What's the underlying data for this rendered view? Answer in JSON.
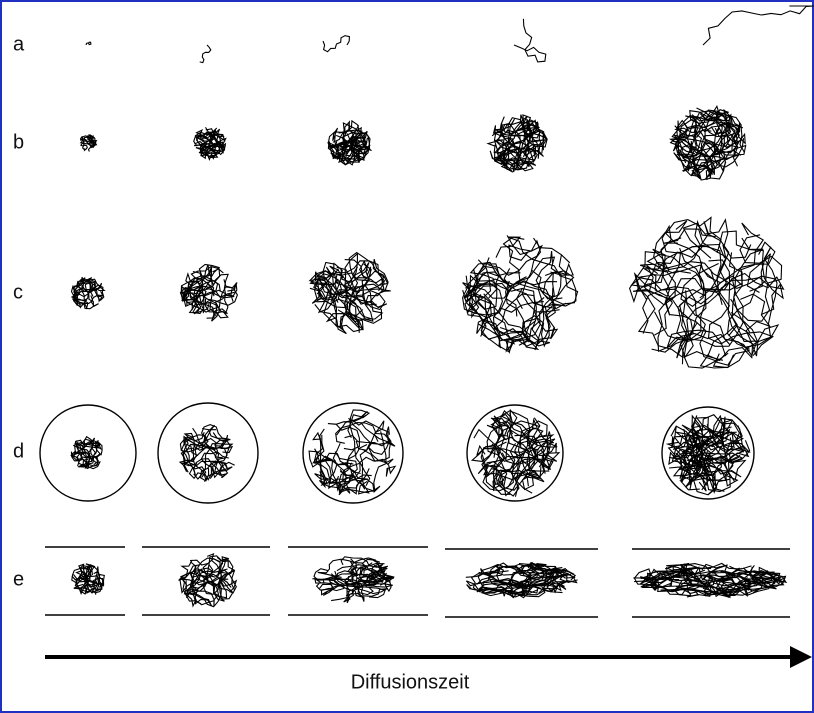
{
  "rows": [
    {
      "label": "a"
    },
    {
      "label": "b"
    },
    {
      "label": "c"
    },
    {
      "label": "d"
    },
    {
      "label": "e"
    }
  ],
  "axis_label": "Diffusionszeit"
}
